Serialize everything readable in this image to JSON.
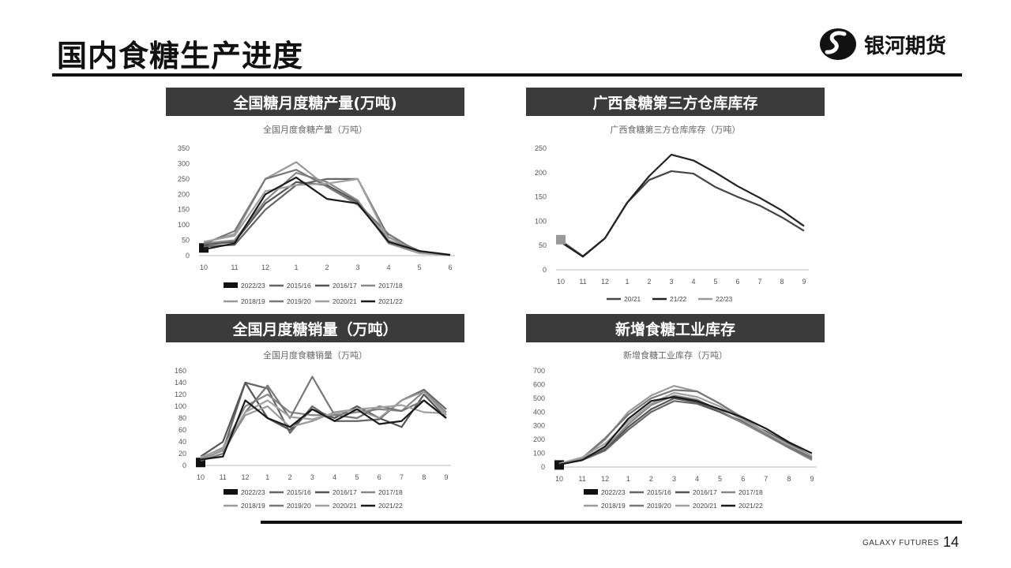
{
  "page": {
    "title": "国内食糖生产进度",
    "brand_name": "银河期货",
    "footer_brand": "GALAXY FUTURES",
    "page_number": "14"
  },
  "panels": [
    {
      "header": "全国糖月度糖产量(万吨)"
    },
    {
      "header": "广西食糖第三方仓库库存"
    },
    {
      "header": "全国月度糖销量（万吨）"
    },
    {
      "header": "新增食糖工业库存"
    }
  ],
  "chart_data": [
    {
      "type": "line",
      "title": "全国月度食糖产量（万吨）",
      "categories": [
        "10",
        "11",
        "12",
        "1",
        "2",
        "3",
        "4",
        "5",
        "6"
      ],
      "ylim": [
        0,
        350
      ],
      "yticks": [
        0,
        50,
        100,
        150,
        200,
        250,
        300,
        350
      ],
      "legend_position": "bottom",
      "series": [
        {
          "name": "2022/23",
          "color": "#111111",
          "values": [
            25,
            null,
            null,
            null,
            null,
            null,
            null,
            null,
            null
          ]
        },
        {
          "name": "2015/16",
          "color": "#666666",
          "values": [
            30,
            35,
            150,
            230,
            250,
            250,
            60,
            15,
            3
          ]
        },
        {
          "name": "2016/17",
          "color": "#555555",
          "values": [
            35,
            45,
            170,
            240,
            230,
            175,
            50,
            12,
            2
          ]
        },
        {
          "name": "2017/18",
          "color": "#888888",
          "values": [
            40,
            50,
            180,
            270,
            240,
            180,
            40,
            8,
            2
          ]
        },
        {
          "name": "2018/19",
          "color": "#999999",
          "values": [
            42,
            70,
            250,
            305,
            225,
            165,
            60,
            10,
            2
          ]
        },
        {
          "name": "2019/20",
          "color": "#777777",
          "values": [
            38,
            80,
            250,
            280,
            225,
            170,
            70,
            10,
            2
          ]
        },
        {
          "name": "2020/21",
          "color": "#a0a0a0",
          "values": [
            45,
            65,
            210,
            230,
            235,
            250,
            50,
            8,
            2
          ]
        },
        {
          "name": "2021/22",
          "color": "#1a1a1a",
          "values": [
            20,
            40,
            200,
            255,
            185,
            170,
            45,
            15,
            2
          ]
        }
      ]
    },
    {
      "type": "line",
      "title": "广西食糖第三方仓库库存（万吨）",
      "categories": [
        "10",
        "11",
        "12",
        "1",
        "2",
        "3",
        "4",
        "5",
        "6",
        "7",
        "8",
        "9"
      ],
      "ylim": [
        0,
        250
      ],
      "yticks": [
        0,
        50,
        100,
        150,
        200,
        250
      ],
      "legend_position": "bottom",
      "series": [
        {
          "name": "20/21",
          "color": "#444444",
          "values": [
            60,
            28,
            65,
            138,
            185,
            203,
            198,
            170,
            150,
            132,
            108,
            80
          ]
        },
        {
          "name": "21/22",
          "color": "#222222",
          "values": [
            57,
            27,
            65,
            138,
            193,
            237,
            225,
            200,
            172,
            148,
            122,
            90
          ]
        },
        {
          "name": "22/23",
          "color": "#9a9a9a",
          "values": [
            62,
            null,
            null,
            null,
            null,
            null,
            null,
            null,
            null,
            null,
            null,
            null
          ]
        }
      ]
    },
    {
      "type": "line",
      "title": "全国月度食糖销量（万吨）",
      "categories": [
        "10",
        "11",
        "12",
        "1",
        "2",
        "3",
        "4",
        "5",
        "6",
        "7",
        "8",
        "9"
      ],
      "ylim": [
        0,
        160
      ],
      "yticks": [
        0,
        20,
        40,
        60,
        80,
        100,
        120,
        140,
        160
      ],
      "legend_position": "bottom",
      "series": [
        {
          "name": "2022/23",
          "color": "#111111",
          "values": [
            5,
            null,
            null,
            null,
            null,
            null,
            null,
            null,
            null,
            null,
            null,
            null
          ]
        },
        {
          "name": "2015/16",
          "color": "#666666",
          "values": [
            10,
            25,
            140,
            130,
            55,
            100,
            75,
            75,
            78,
            110,
            128,
            95
          ]
        },
        {
          "name": "2016/17",
          "color": "#555555",
          "values": [
            15,
            40,
            140,
            80,
            60,
            95,
            80,
            100,
            80,
            65,
            120,
            80
          ]
        },
        {
          "name": "2017/18",
          "color": "#888888",
          "values": [
            12,
            30,
            100,
            120,
            90,
            85,
            85,
            90,
            95,
            92,
            125,
            90
          ]
        },
        {
          "name": "2018/19",
          "color": "#999999",
          "values": [
            10,
            25,
            85,
            100,
            65,
            75,
            90,
            95,
            80,
            110,
            125,
            85
          ]
        },
        {
          "name": "2019/20",
          "color": "#777777",
          "values": [
            8,
            20,
            90,
            135,
            80,
            150,
            85,
            80,
            100,
            92,
            110,
            80
          ]
        },
        {
          "name": "2020/21",
          "color": "#a0a0a0",
          "values": [
            14,
            28,
            90,
            110,
            82,
            78,
            88,
            95,
            98,
            102,
            90,
            88
          ]
        },
        {
          "name": "2021/22",
          "color": "#1a1a1a",
          "values": [
            10,
            15,
            110,
            80,
            65,
            95,
            75,
            95,
            70,
            75,
            110,
            80
          ]
        }
      ]
    },
    {
      "type": "line",
      "title": "新增食糖工业库存（万吨）",
      "categories": [
        "10",
        "11",
        "12",
        "1",
        "2",
        "3",
        "4",
        "5",
        "6",
        "7",
        "8",
        "9"
      ],
      "ylim": [
        0,
        700
      ],
      "yticks": [
        0,
        100,
        200,
        300,
        400,
        500,
        600,
        700
      ],
      "legend_position": "bottom",
      "series": [
        {
          "name": "2022/23",
          "color": "#111111",
          "values": [
            15,
            null,
            null,
            null,
            null,
            null,
            null,
            null,
            null,
            null,
            null,
            null
          ]
        },
        {
          "name": "2015/16",
          "color": "#666666",
          "values": [
            20,
            50,
            120,
            270,
            400,
            480,
            460,
            400,
            320,
            240,
            150,
            70
          ]
        },
        {
          "name": "2016/17",
          "color": "#555555",
          "values": [
            18,
            55,
            130,
            290,
            420,
            500,
            470,
            400,
            330,
            260,
            170,
            80
          ]
        },
        {
          "name": "2017/18",
          "color": "#888888",
          "values": [
            22,
            60,
            140,
            310,
            450,
            520,
            490,
            410,
            320,
            230,
            140,
            60
          ]
        },
        {
          "name": "2018/19",
          "color": "#999999",
          "values": [
            20,
            60,
            200,
            400,
            520,
            590,
            550,
            460,
            360,
            250,
            140,
            50
          ]
        },
        {
          "name": "2019/20",
          "color": "#777777",
          "values": [
            20,
            65,
            210,
            380,
            500,
            560,
            550,
            460,
            350,
            240,
            140,
            60
          ]
        },
        {
          "name": "2020/21",
          "color": "#a0a0a0",
          "values": [
            25,
            70,
            170,
            330,
            460,
            540,
            510,
            440,
            340,
            250,
            160,
            80
          ]
        },
        {
          "name": "2021/22",
          "color": "#1a1a1a",
          "values": [
            18,
            50,
            150,
            350,
            480,
            510,
            480,
            420,
            360,
            280,
            180,
            100
          ]
        }
      ]
    }
  ]
}
